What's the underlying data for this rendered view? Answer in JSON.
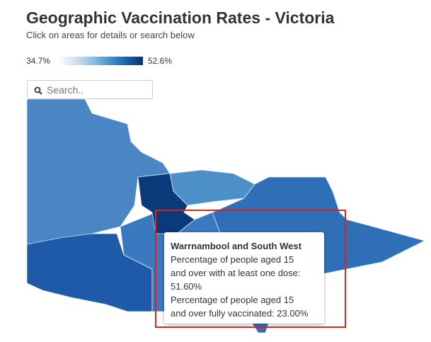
{
  "header": {
    "title": "Geographic Vaccination Rates - Victoria",
    "subtitle": "Click on areas for details or search below"
  },
  "legend": {
    "min_label": "34.7%",
    "max_label": "52.6%"
  },
  "search": {
    "placeholder": "Search.."
  },
  "tooltip": {
    "title": "Warrnambool and South West",
    "lines": [
      "Percentage of people aged 15",
      "and over with at least one dose:",
      "51.60%",
      "Percentage of people aged 15",
      "and over fully vaccinated: 23.00%"
    ]
  }
}
